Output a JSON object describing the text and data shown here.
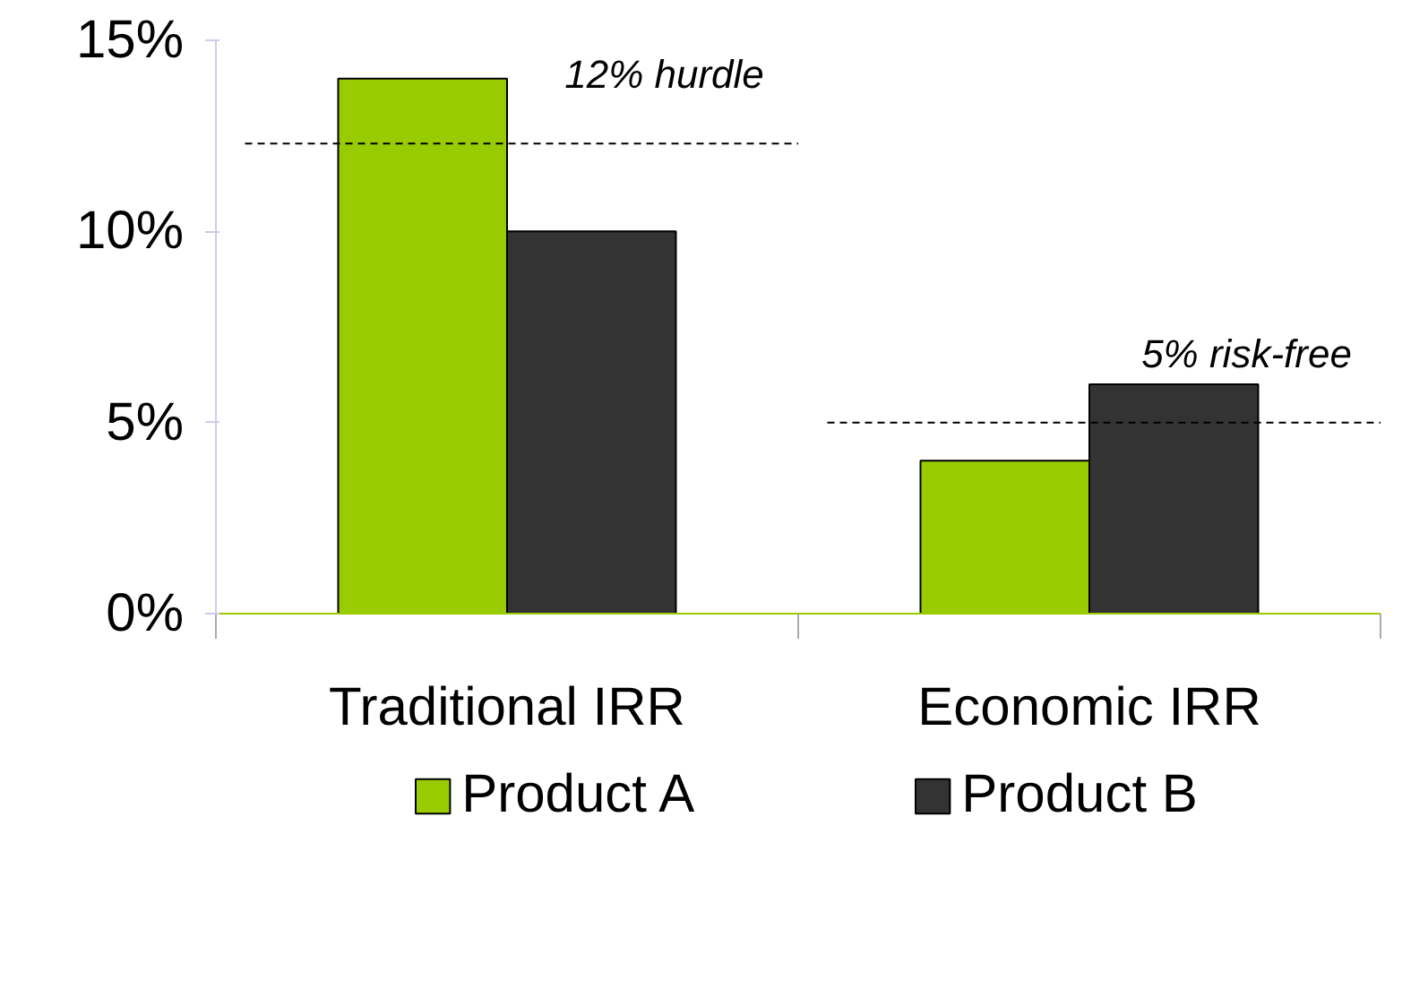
{
  "chart_data": {
    "type": "bar",
    "categories": [
      "Traditional IRR",
      "Economic IRR"
    ],
    "series": [
      {
        "name": "Product A",
        "color": "#99cc00",
        "values": [
          14,
          4
        ]
      },
      {
        "name": "Product B",
        "color": "#333333",
        "values": [
          10,
          6
        ]
      }
    ],
    "ylim": [
      0,
      15
    ],
    "yticks": [
      {
        "value": 0,
        "label": "0%"
      },
      {
        "value": 5,
        "label": "5%"
      },
      {
        "value": 10,
        "label": "10%"
      },
      {
        "value": 15,
        "label": "15%"
      }
    ],
    "ref_lines": [
      {
        "axis": "y",
        "value": 12.3,
        "label": "12% hurdle",
        "line_style": "dashed"
      },
      {
        "axis": "y",
        "value": 5,
        "label": "5% risk-free",
        "line_style": "dashed"
      }
    ],
    "grid": false,
    "legend": "bottom"
  }
}
